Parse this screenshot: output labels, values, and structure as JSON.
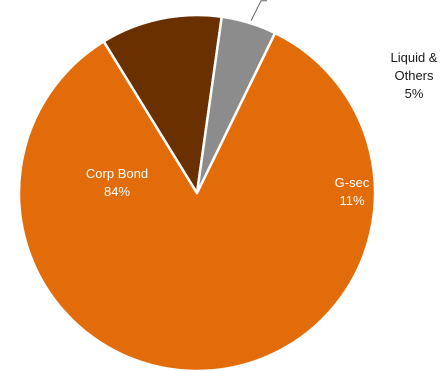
{
  "chart_data": {
    "type": "pie",
    "slices": [
      {
        "name": "Corp Bond",
        "value": 84,
        "value_label": "84%",
        "color": "#e36c0a",
        "label_color": "#ffffff",
        "label_inside": true
      },
      {
        "name": "G-sec",
        "value": 11,
        "value_label": "11%",
        "color": "#6b3000",
        "label_color": "#ffffff",
        "label_inside": true
      },
      {
        "name": "Liquid & Others",
        "name_lines": [
          "Liquid &",
          "Others"
        ],
        "value": 5,
        "value_label": "5%",
        "color": "#8c8c8c",
        "label_color": "#1a1a1a",
        "label_inside": false
      }
    ],
    "legend": "none"
  }
}
